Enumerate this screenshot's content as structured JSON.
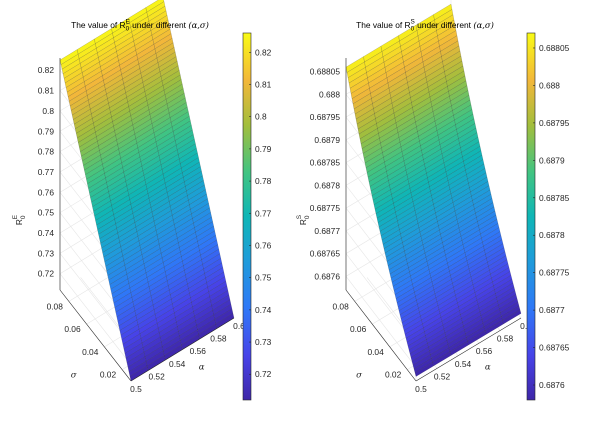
{
  "chart_data": [
    {
      "type": "surface",
      "title": {
        "prefix": "The value of R",
        "sub": "0",
        "sup": "E",
        "suffix": " under different ",
        "params": "(α,σ)"
      },
      "zlabel": {
        "base": "R",
        "sub": "0",
        "sup": "E"
      },
      "xlabel": "α",
      "ylabel": "σ",
      "x_range": [
        0.5,
        0.6
      ],
      "y_range": [
        0.01,
        0.09
      ],
      "x_ticks": [
        "0.5",
        "0.52",
        "0.54",
        "0.56",
        "0.58",
        "0.6"
      ],
      "y_ticks": [
        "0.02",
        "0.04",
        "0.06",
        "0.08"
      ],
      "z_ticks": [
        "0.72",
        "0.73",
        "0.74",
        "0.75",
        "0.76",
        "0.77",
        "0.78",
        "0.79",
        "0.8",
        "0.81",
        "0.82"
      ],
      "zlim": [
        0.712,
        0.826
      ],
      "surface_corners": {
        "alpha_0.5_sigma_0.01": 0.712,
        "alpha_0.6_sigma_0.01": 0.712,
        "alpha_0.5_sigma_0.09": 0.825,
        "alpha_0.6_sigma_0.09": 0.825
      },
      "curvature": 0.0,
      "colorbar_ticks": [
        "0.72",
        "0.73",
        "0.74",
        "0.75",
        "0.76",
        "0.77",
        "0.78",
        "0.79",
        "0.8",
        "0.81",
        "0.82"
      ],
      "colorbar_range": [
        0.712,
        0.826
      ],
      "colormap": "parula"
    },
    {
      "type": "surface",
      "title": {
        "prefix": "The value of R",
        "sub": "0",
        "sup": "S",
        "suffix": " under different ",
        "params": "(α,σ)"
      },
      "zlabel": {
        "base": "R",
        "sub": "0",
        "sup": "S"
      },
      "xlabel": "α",
      "ylabel": "σ",
      "x_range": [
        0.5,
        0.6
      ],
      "y_range": [
        0.01,
        0.09
      ],
      "x_ticks": [
        "0.5",
        "0.52",
        "0.54",
        "0.56",
        "0.58",
        "0.6"
      ],
      "y_ticks": [
        "0.02",
        "0.04",
        "0.06",
        "0.08"
      ],
      "z_ticks": [
        "0.6876",
        "0.68765",
        "0.6877",
        "0.68775",
        "0.6878",
        "0.68785",
        "0.6879",
        "0.68795",
        "0.688",
        "0.68805"
      ],
      "zlim": [
        0.68757,
        0.68808
      ],
      "surface_corners": {
        "alpha_0.5_sigma_0.01": 0.68758,
        "alpha_0.6_sigma_0.01": 0.68758,
        "alpha_0.5_sigma_0.09": 0.68806,
        "alpha_0.6_sigma_0.09": 0.68806
      },
      "curvature": 0.35,
      "colorbar_ticks": [
        "0.6876",
        "0.68765",
        "0.6877",
        "0.68775",
        "0.6878",
        "0.68785",
        "0.6879",
        "0.68795",
        "0.688",
        "0.68805"
      ],
      "colorbar_range": [
        0.68758,
        0.68807
      ],
      "colormap": "parula"
    }
  ]
}
